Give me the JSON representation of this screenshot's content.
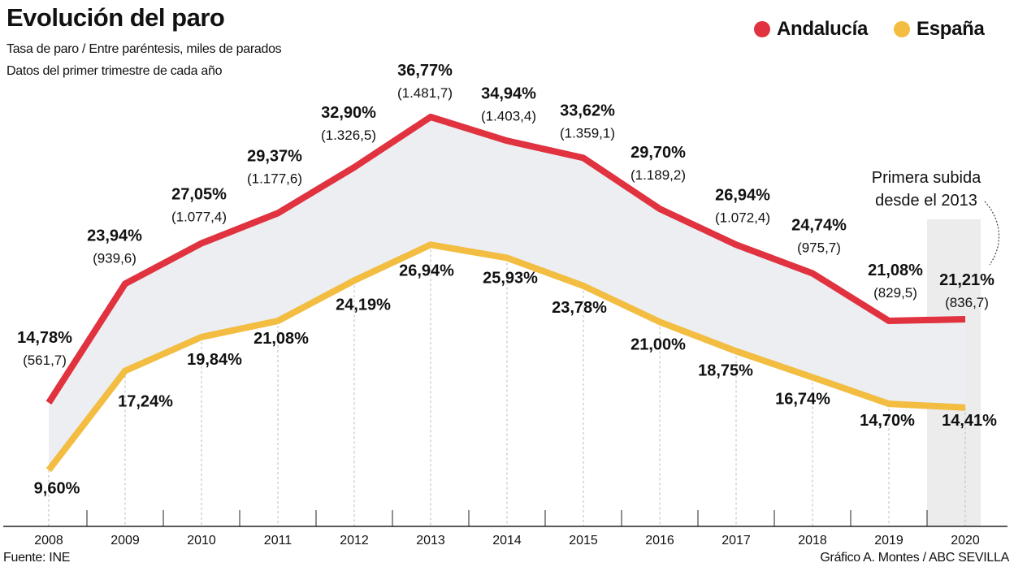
{
  "header": {
    "title": "Evolución del paro",
    "subtitle_1": "Tasa de paro / Entre paréntesis, miles de parados",
    "subtitle_2": "Datos del primer trimestre de cada año"
  },
  "footer": {
    "source": "Fuente: INE",
    "credit": "Gráfico A. Montes / ABC SEVILLA"
  },
  "chart_data": {
    "type": "line",
    "title": "Evolución del paro",
    "categories": [
      "2008",
      "2009",
      "2010",
      "2011",
      "2012",
      "2013",
      "2014",
      "2015",
      "2016",
      "2017",
      "2018",
      "2019",
      "2020"
    ],
    "legend_position": "top-right",
    "grid": "vertical dashed",
    "series": [
      {
        "name": "Andalucía",
        "color": "#e0323f",
        "values": [
          14.78,
          23.94,
          27.05,
          29.37,
          32.9,
          36.77,
          34.94,
          33.62,
          29.7,
          26.94,
          24.74,
          21.08,
          21.21
        ],
        "labels": [
          "14,78%",
          "23,94%",
          "27,05%",
          "29,37%",
          "32,90%",
          "36,77%",
          "34,94%",
          "33,62%",
          "29,70%",
          "26,94%",
          "24,74%",
          "21,08%",
          "21,21%"
        ],
        "parados_miles": [
          "(561,7)",
          "(939,6)",
          "(1.077,4)",
          "(1.177,6)",
          "(1.326,5)",
          "(1.481,7)",
          "(1.403,4)",
          "(1.359,1)",
          "(1.189,2)",
          "(1.072,4)",
          "(975,7)",
          "(829,5)",
          "(836,7)"
        ]
      },
      {
        "name": "España",
        "color": "#f2bd40",
        "values": [
          9.6,
          17.24,
          19.84,
          21.08,
          24.19,
          26.94,
          25.93,
          23.78,
          21.0,
          18.75,
          16.74,
          14.7,
          14.41
        ],
        "labels": [
          "9,60%",
          "17,24%",
          "19,84%",
          "21,08%",
          "24,19%",
          "26,94%",
          "25,93%",
          "23,78%",
          "21,00%",
          "18,75%",
          "16,74%",
          "14,70%",
          "14,41%"
        ]
      }
    ],
    "annotation": {
      "line_1": "Primera subida",
      "line_2": "desde el 2013",
      "highlighted_category": "2020"
    },
    "band_fill": "#eceef2",
    "highlight_fill": "#ececec"
  }
}
